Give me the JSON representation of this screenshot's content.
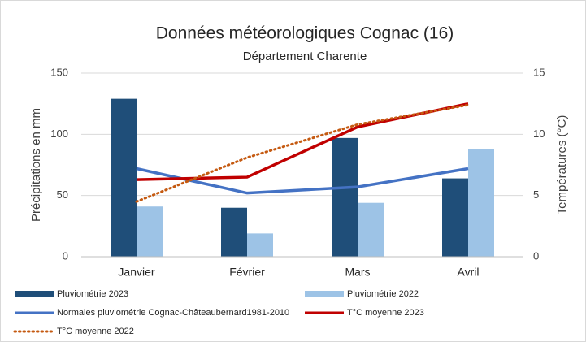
{
  "chart_data": {
    "type": "bar",
    "title": "Données météorologiques Cognac (16)",
    "subtitle": "Département Charente",
    "y_label": "Précipitations en mm",
    "y2_label": "Températures (°C)",
    "categories": [
      "Janvier",
      "Février",
      "Mars",
      "Avril"
    ],
    "ylim": [
      0,
      150
    ],
    "yticks": [
      0,
      50,
      100,
      150
    ],
    "y2lim": [
      0,
      15
    ],
    "y2ticks": [
      0,
      5,
      10,
      15
    ],
    "series": [
      {
        "name": "Pluviométrie 2023",
        "type": "bar",
        "color": "#1f4e79",
        "values": [
          129,
          40,
          97,
          64
        ]
      },
      {
        "name": "Pluviométrie 2022",
        "type": "bar",
        "color": "#9dc3e6",
        "values": [
          41,
          19,
          44,
          88
        ]
      },
      {
        "name": "Normales pluviométrie Cognac-Châteaubernard1981-2010",
        "type": "line",
        "color": "#4472c4",
        "values": [
          72,
          52,
          57,
          72
        ]
      },
      {
        "name": "T°C moyenne 2023",
        "type": "line",
        "axis": "y2",
        "color": "#c00000",
        "values": [
          6.3,
          6.5,
          10.6,
          12.5
        ]
      },
      {
        "name": "T°C moyenne 2022",
        "type": "line",
        "axis": "y2",
        "linestyle": "dotted",
        "color": "#c55a11",
        "values": [
          4.5,
          8.1,
          10.8,
          12.4
        ]
      }
    ]
  }
}
